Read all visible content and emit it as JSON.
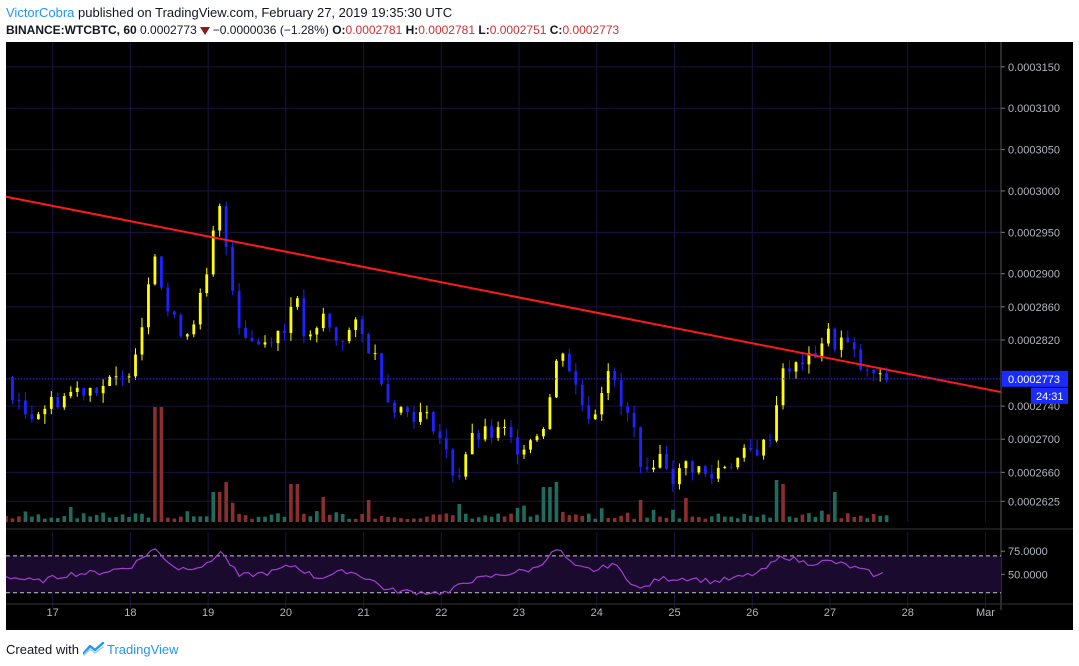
{
  "header": {
    "author": "VictorCobra",
    "published_text": " published on TradingView.com, February 27, 2019 19:35:30 UTC",
    "symbol": "BINANCE:WTCBTC, 60",
    "last": "0.0002773",
    "change": "−0.0000036 (−1.28%)",
    "open_label": "O:",
    "open": "0.0002781",
    "high_label": "H:",
    "high": "0.0002781",
    "low_label": "L:",
    "low": "0.0002751",
    "close_label": "C:",
    "close": "0.0002773"
  },
  "price_tag": {
    "value": "0.0002773",
    "countdown": "24:31"
  },
  "footer": {
    "created_with": "Created with",
    "brand": "TradingView"
  },
  "colors": {
    "background": "#000000",
    "up_candle": "#ffff00",
    "down_candle": "#1e22ff",
    "trendline": "#ff1a1a",
    "rsi_line": "#a040d0",
    "volume_up": "#1f6b5e",
    "volume_down": "#8b2e2e",
    "price_tag": "#1a2bff"
  },
  "chart_data": [
    {
      "type": "candlestick",
      "ylim": [
        0.00026,
        0.000318
      ],
      "y_tick_labels": [
        "0.0003150",
        "0.0003100",
        "0.0003050",
        "0.0003000",
        "0.0002950",
        "0.0002900",
        "0.0002860",
        "0.0002820",
        "0.0002773",
        "0.0002740",
        "0.0002700",
        "0.0002660",
        "0.0002625"
      ],
      "x_tick_labels": [
        "17",
        "18",
        "19",
        "20",
        "21",
        "22",
        "23",
        "24",
        "25",
        "26",
        "27",
        "28",
        "Mar"
      ],
      "x_range_days": [
        16.4,
        29.2
      ],
      "current_price": 0.0002773,
      "trendline": {
        "from": [
          16.4,
          0.0002993
        ],
        "to": [
          29.2,
          0.0002757
        ]
      },
      "price_path": [
        [
          16.4,
          0.0002775
        ],
        [
          16.6,
          0.000273
        ],
        [
          16.8,
          0.0002735
        ],
        [
          17.0,
          0.0002745
        ],
        [
          17.3,
          0.000276
        ],
        [
          17.6,
          0.0002765
        ],
        [
          17.9,
          0.000277
        ],
        [
          18.0,
          0.000279
        ],
        [
          18.15,
          0.000284
        ],
        [
          18.3,
          0.000294
        ],
        [
          18.45,
          0.000286
        ],
        [
          18.6,
          0.0002835
        ],
        [
          18.75,
          0.000283
        ],
        [
          18.9,
          0.000287
        ],
        [
          19.0,
          0.0002895
        ],
        [
          19.12,
          0.000299
        ],
        [
          19.25,
          0.0002925
        ],
        [
          19.4,
          0.000284
        ],
        [
          19.55,
          0.000282
        ],
        [
          19.7,
          0.0002815
        ],
        [
          19.85,
          0.000283
        ],
        [
          20.0,
          0.000283
        ],
        [
          20.1,
          0.000289
        ],
        [
          20.2,
          0.000283
        ],
        [
          20.35,
          0.0002815
        ],
        [
          20.5,
          0.0002855
        ],
        [
          20.6,
          0.000282
        ],
        [
          20.75,
          0.0002825
        ],
        [
          20.9,
          0.0002835
        ],
        [
          21.05,
          0.0002815
        ],
        [
          21.2,
          0.000279
        ],
        [
          21.3,
          0.000275
        ],
        [
          21.5,
          0.0002735
        ],
        [
          21.7,
          0.000273
        ],
        [
          21.9,
          0.000272
        ],
        [
          22.05,
          0.0002685
        ],
        [
          22.2,
          0.000265
        ],
        [
          22.35,
          0.0002695
        ],
        [
          22.5,
          0.0002705
        ],
        [
          22.65,
          0.0002705
        ],
        [
          22.8,
          0.000271
        ],
        [
          22.95,
          0.000269
        ],
        [
          23.05,
          0.0002695
        ],
        [
          23.2,
          0.0002705
        ],
        [
          23.35,
          0.0002725
        ],
        [
          23.45,
          0.000278
        ],
        [
          23.55,
          0.0002815
        ],
        [
          23.65,
          0.0002785
        ],
        [
          23.8,
          0.0002745
        ],
        [
          23.95,
          0.0002725
        ],
        [
          24.05,
          0.000276
        ],
        [
          24.15,
          0.000279
        ],
        [
          24.3,
          0.000274
        ],
        [
          24.45,
          0.000272
        ],
        [
          24.55,
          0.0002685
        ],
        [
          24.62,
          0.0002645
        ],
        [
          24.72,
          0.0002675
        ],
        [
          24.85,
          0.000268
        ],
        [
          25.0,
          0.000265
        ],
        [
          25.15,
          0.000267
        ],
        [
          25.3,
          0.0002665
        ],
        [
          25.45,
          0.000265
        ],
        [
          25.6,
          0.000267
        ],
        [
          25.8,
          0.0002675
        ],
        [
          26.0,
          0.0002685
        ],
        [
          26.2,
          0.0002695
        ],
        [
          26.3,
          0.0002735
        ],
        [
          26.4,
          0.0002795
        ],
        [
          26.5,
          0.000277
        ],
        [
          26.6,
          0.00028
        ],
        [
          26.7,
          0.000279
        ],
        [
          26.85,
          0.000281
        ],
        [
          26.95,
          0.000283
        ],
        [
          27.05,
          0.0002815
        ],
        [
          27.15,
          0.000282
        ],
        [
          27.25,
          0.000281
        ],
        [
          27.35,
          0.0002795
        ],
        [
          27.45,
          0.0002775
        ],
        [
          27.55,
          0.000278
        ],
        [
          27.65,
          0.000277
        ],
        [
          27.72,
          0.0002773
        ]
      ]
    },
    {
      "type": "line",
      "name": "RSI",
      "ylim": [
        20,
        85
      ],
      "y_tick_labels": [
        "75.0000",
        "50.0000"
      ],
      "bands": [
        70,
        30
      ],
      "path": [
        [
          16.4,
          48
        ],
        [
          16.8,
          42
        ],
        [
          17.2,
          50
        ],
        [
          17.6,
          52
        ],
        [
          18.0,
          58
        ],
        [
          18.3,
          78
        ],
        [
          18.6,
          56
        ],
        [
          19.0,
          60
        ],
        [
          19.15,
          76
        ],
        [
          19.4,
          48
        ],
        [
          19.8,
          52
        ],
        [
          20.1,
          60
        ],
        [
          20.4,
          46
        ],
        [
          20.8,
          54
        ],
        [
          21.1,
          44
        ],
        [
          21.3,
          33
        ],
        [
          21.6,
          31
        ],
        [
          22.1,
          30
        ],
        [
          22.3,
          42
        ],
        [
          22.8,
          50
        ],
        [
          23.2,
          56
        ],
        [
          23.5,
          78
        ],
        [
          23.7,
          58
        ],
        [
          24.0,
          54
        ],
        [
          24.2,
          62
        ],
        [
          24.55,
          33
        ],
        [
          24.8,
          45
        ],
        [
          25.2,
          46
        ],
        [
          25.5,
          42
        ],
        [
          25.8,
          46
        ],
        [
          26.1,
          52
        ],
        [
          26.4,
          70
        ],
        [
          26.7,
          62
        ],
        [
          27.0,
          64
        ],
        [
          27.2,
          60
        ],
        [
          27.5,
          52
        ],
        [
          27.62,
          48
        ],
        [
          27.72,
          52
        ]
      ]
    }
  ]
}
